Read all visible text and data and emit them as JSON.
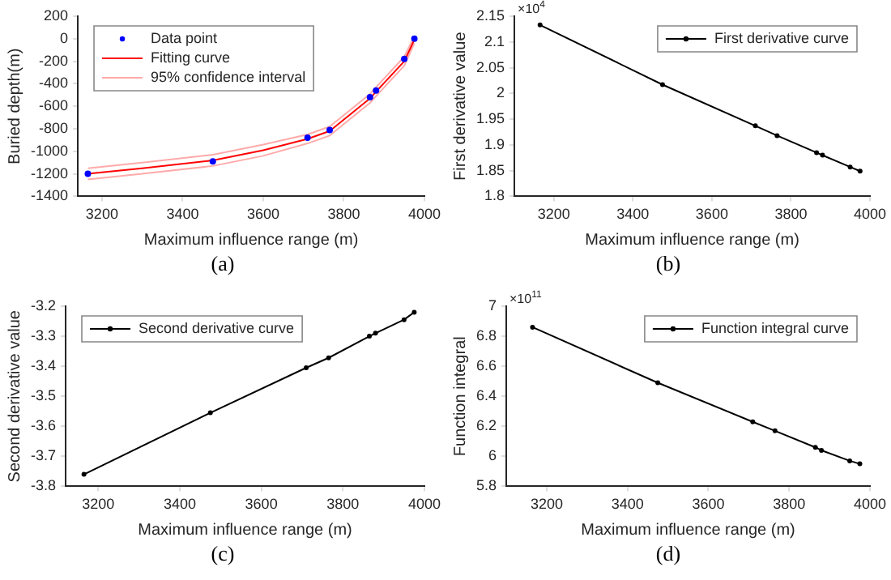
{
  "chart_data": [
    {
      "type": "scatter",
      "xlabel": "Maximum influence range (m)",
      "ylabel": "Buried depth(m)",
      "xlim": [
        3140,
        4000
      ],
      "xticks": [
        3200,
        3400,
        3600,
        3800,
        4000
      ],
      "ylim": [
        -1400,
        200
      ],
      "yticks": [
        -1400,
        -1200,
        -1000,
        -800,
        -600,
        -400,
        -200,
        0,
        200
      ],
      "grid": false,
      "legend": "top left",
      "annotations": [
        "(a)"
      ],
      "series": [
        {
          "name": "Data point",
          "type": "scatter",
          "marker": "circle",
          "color": "#0000ff",
          "x": [
            3165,
            3475,
            3710,
            3765,
            3865,
            3880,
            3950,
            3975
          ],
          "values": [
            -1200,
            -1090,
            -880,
            -810,
            -520,
            -460,
            -180,
            0
          ]
        },
        {
          "name": "Fitting curve",
          "type": "line",
          "marker": "none",
          "color": "#ff0000",
          "x": [
            3165,
            3300,
            3475,
            3600,
            3710,
            3765,
            3865,
            3880,
            3950,
            3975
          ],
          "values": [
            -1200,
            -1150,
            -1080,
            -990,
            -890,
            -820,
            -530,
            -470,
            -200,
            -10
          ]
        },
        {
          "name": "95% confidence interval",
          "type": "line",
          "marker": "none",
          "color": "#ffaaaa",
          "x": [
            3165,
            3300,
            3475,
            3600,
            3710,
            3765,
            3865,
            3880,
            3950,
            3975
          ],
          "values": [
            -1150,
            -1100,
            -1030,
            -940,
            -850,
            -780,
            -490,
            -430,
            -160,
            20
          ]
        },
        {
          "type": "line",
          "marker": "none",
          "color": "#ffaaaa",
          "x": [
            3165,
            3300,
            3475,
            3600,
            3710,
            3765,
            3865,
            3880,
            3950,
            3975
          ],
          "values": [
            -1250,
            -1200,
            -1130,
            -1040,
            -930,
            -860,
            -570,
            -510,
            -240,
            -40
          ]
        }
      ]
    },
    {
      "type": "line",
      "xlabel": "Maximum influence range (m)",
      "ylabel": "First derivative value",
      "xlim": [
        3100,
        4000
      ],
      "xticks": [
        3200,
        3400,
        3600,
        3800,
        4000
      ],
      "ylim": [
        1.8,
        2.15
      ],
      "yticks": [
        1.8,
        1.85,
        1.9,
        1.95,
        2,
        2.05,
        2.1,
        2.15
      ],
      "grid": false,
      "legend": "top right",
      "marker": "circle",
      "annotations": [
        "×10$^{4}$",
        "(b)"
      ],
      "x": [
        3165,
        3475,
        3710,
        3765,
        3865,
        3880,
        3950,
        3975
      ],
      "series": [
        {
          "name": "First derivative curve",
          "color": "#000000",
          "values": [
            2.133,
            2.017,
            1.937,
            1.918,
            1.885,
            1.88,
            1.857,
            1.849
          ]
        }
      ]
    },
    {
      "type": "line",
      "xlabel": "Maximum influence range (m)",
      "ylabel": "Second derivative value",
      "xlim": [
        3120,
        4000
      ],
      "xticks": [
        3200,
        3400,
        3600,
        3800,
        4000
      ],
      "ylim": [
        -3.8,
        -3.2
      ],
      "yticks": [
        -3.8,
        -3.7,
        -3.6,
        -3.5,
        -3.4,
        -3.3,
        -3.2
      ],
      "grid": false,
      "legend": "top left",
      "marker": "circle",
      "annotations": [
        "(c)"
      ],
      "x": [
        3165,
        3475,
        3710,
        3765,
        3865,
        3880,
        3950,
        3975
      ],
      "series": [
        {
          "name": "Second derivative curve",
          "color": "#000000",
          "values": [
            -3.76,
            -3.555,
            -3.405,
            -3.372,
            -3.3,
            -3.29,
            -3.245,
            -3.22
          ]
        }
      ]
    },
    {
      "type": "line",
      "xlabel": "Maximum influence range (m)",
      "ylabel": "Function integral",
      "xlim": [
        3100,
        4000
      ],
      "xticks": [
        3200,
        3400,
        3600,
        3800,
        4000
      ],
      "ylim": [
        5.8,
        7
      ],
      "yticks": [
        5.8,
        6,
        6.2,
        6.4,
        6.6,
        6.8,
        7
      ],
      "grid": false,
      "legend": "top right",
      "marker": "circle",
      "annotations": [
        "×10$^{11}$",
        "(d)"
      ],
      "x": [
        3165,
        3475,
        3710,
        3765,
        3865,
        3880,
        3950,
        3975
      ],
      "series": [
        {
          "name": "Function integral curve",
          "color": "#000000",
          "values": [
            6.86,
            6.49,
            6.23,
            6.17,
            6.06,
            6.04,
            5.97,
            5.95
          ]
        }
      ]
    }
  ]
}
